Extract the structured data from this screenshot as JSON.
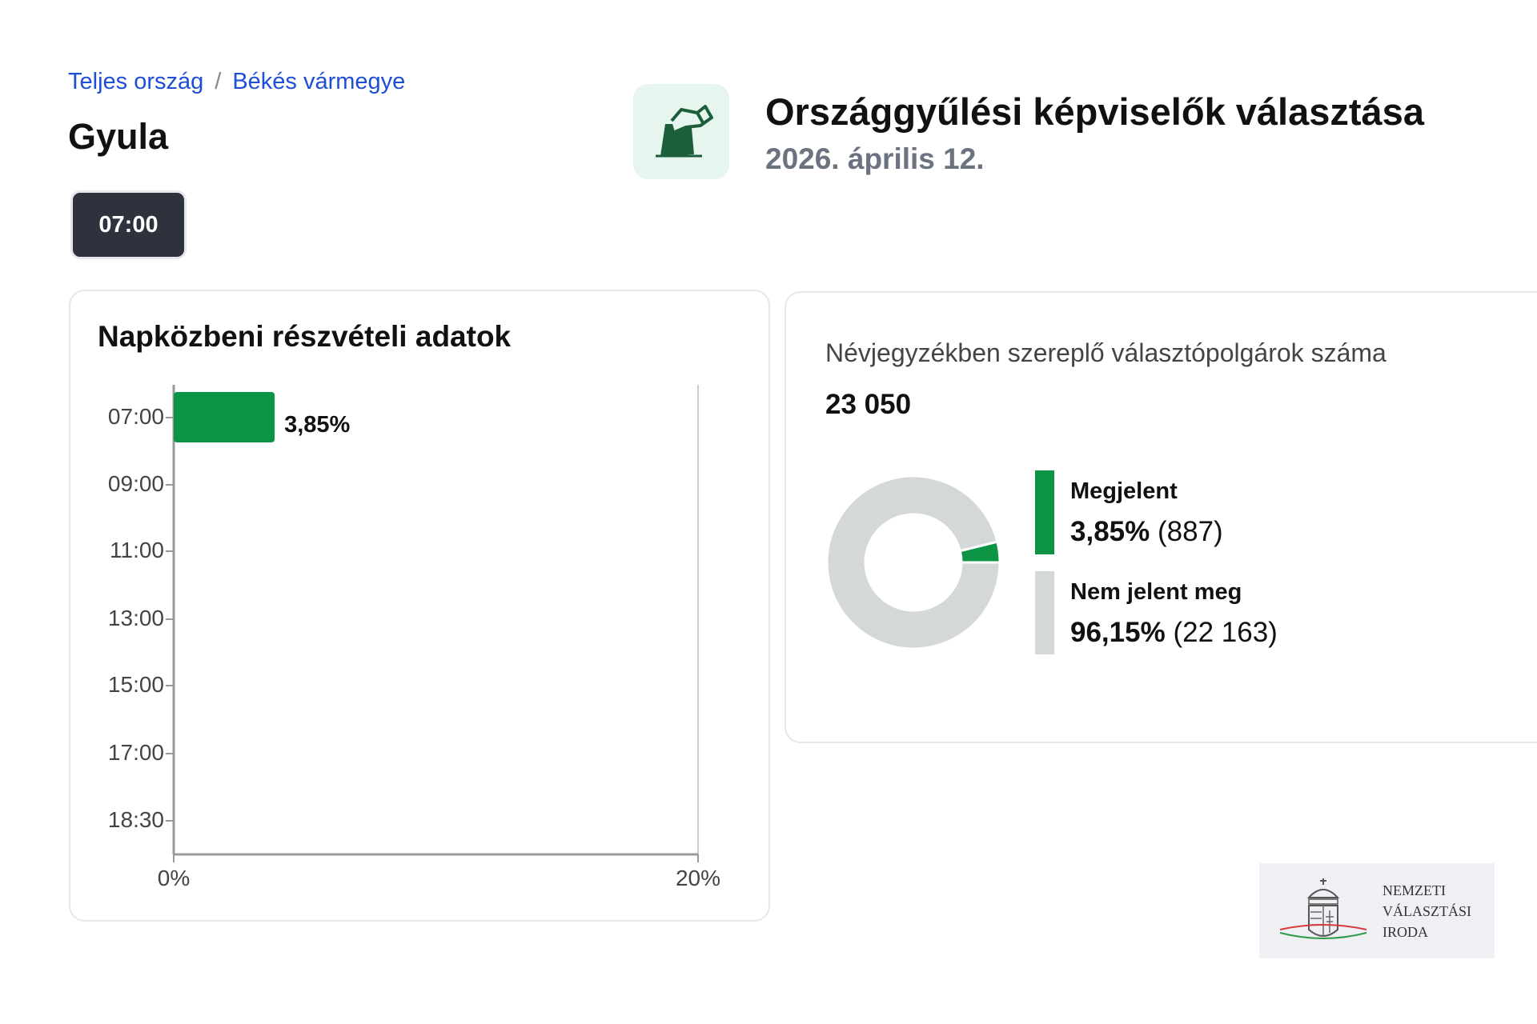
{
  "breadcrumb": [
    {
      "label": "Teljes ország"
    },
    {
      "label": "Békés vármegye"
    }
  ],
  "breadcrumb_separator": "/",
  "place": "Gyula",
  "time_button": "07:00",
  "header": {
    "title": "Országgyűlési képviselők választása",
    "date": "2026. április 12.",
    "icon": "ballot-box-icon"
  },
  "turnout_card": {
    "title": "Napközbeni részvételi adatok"
  },
  "chart_data": {
    "type": "bar",
    "orientation": "horizontal",
    "categories": [
      "07:00",
      "09:00",
      "11:00",
      "13:00",
      "15:00",
      "17:00",
      "18:30"
    ],
    "values": [
      3.85,
      null,
      null,
      null,
      null,
      null,
      null
    ],
    "data_labels": [
      "3,85%",
      "",
      "",
      "",
      "",
      "",
      ""
    ],
    "xlim": [
      0,
      20
    ],
    "xticks": [
      "0%",
      "20%"
    ],
    "color": "#0b9444"
  },
  "registry_card": {
    "label": "Névjegyzékben szereplő választópolgárok száma",
    "value": "23 050",
    "donut": {
      "type": "pie",
      "values": [
        3.85,
        96.15
      ],
      "colors": [
        "#0b9444",
        "#d4d8d8"
      ]
    },
    "legend": [
      {
        "name": "Megjelent",
        "percent": "3,85%",
        "count": "(887)",
        "color": "#0b9444"
      },
      {
        "name": "Nem jelent meg",
        "percent": "96,15%",
        "count": "(22 163)",
        "color": "#d4d8d8"
      }
    ]
  },
  "logo": {
    "lines": [
      "NEMZETI",
      "VÁLASZTÁSI",
      "IRODA"
    ]
  }
}
